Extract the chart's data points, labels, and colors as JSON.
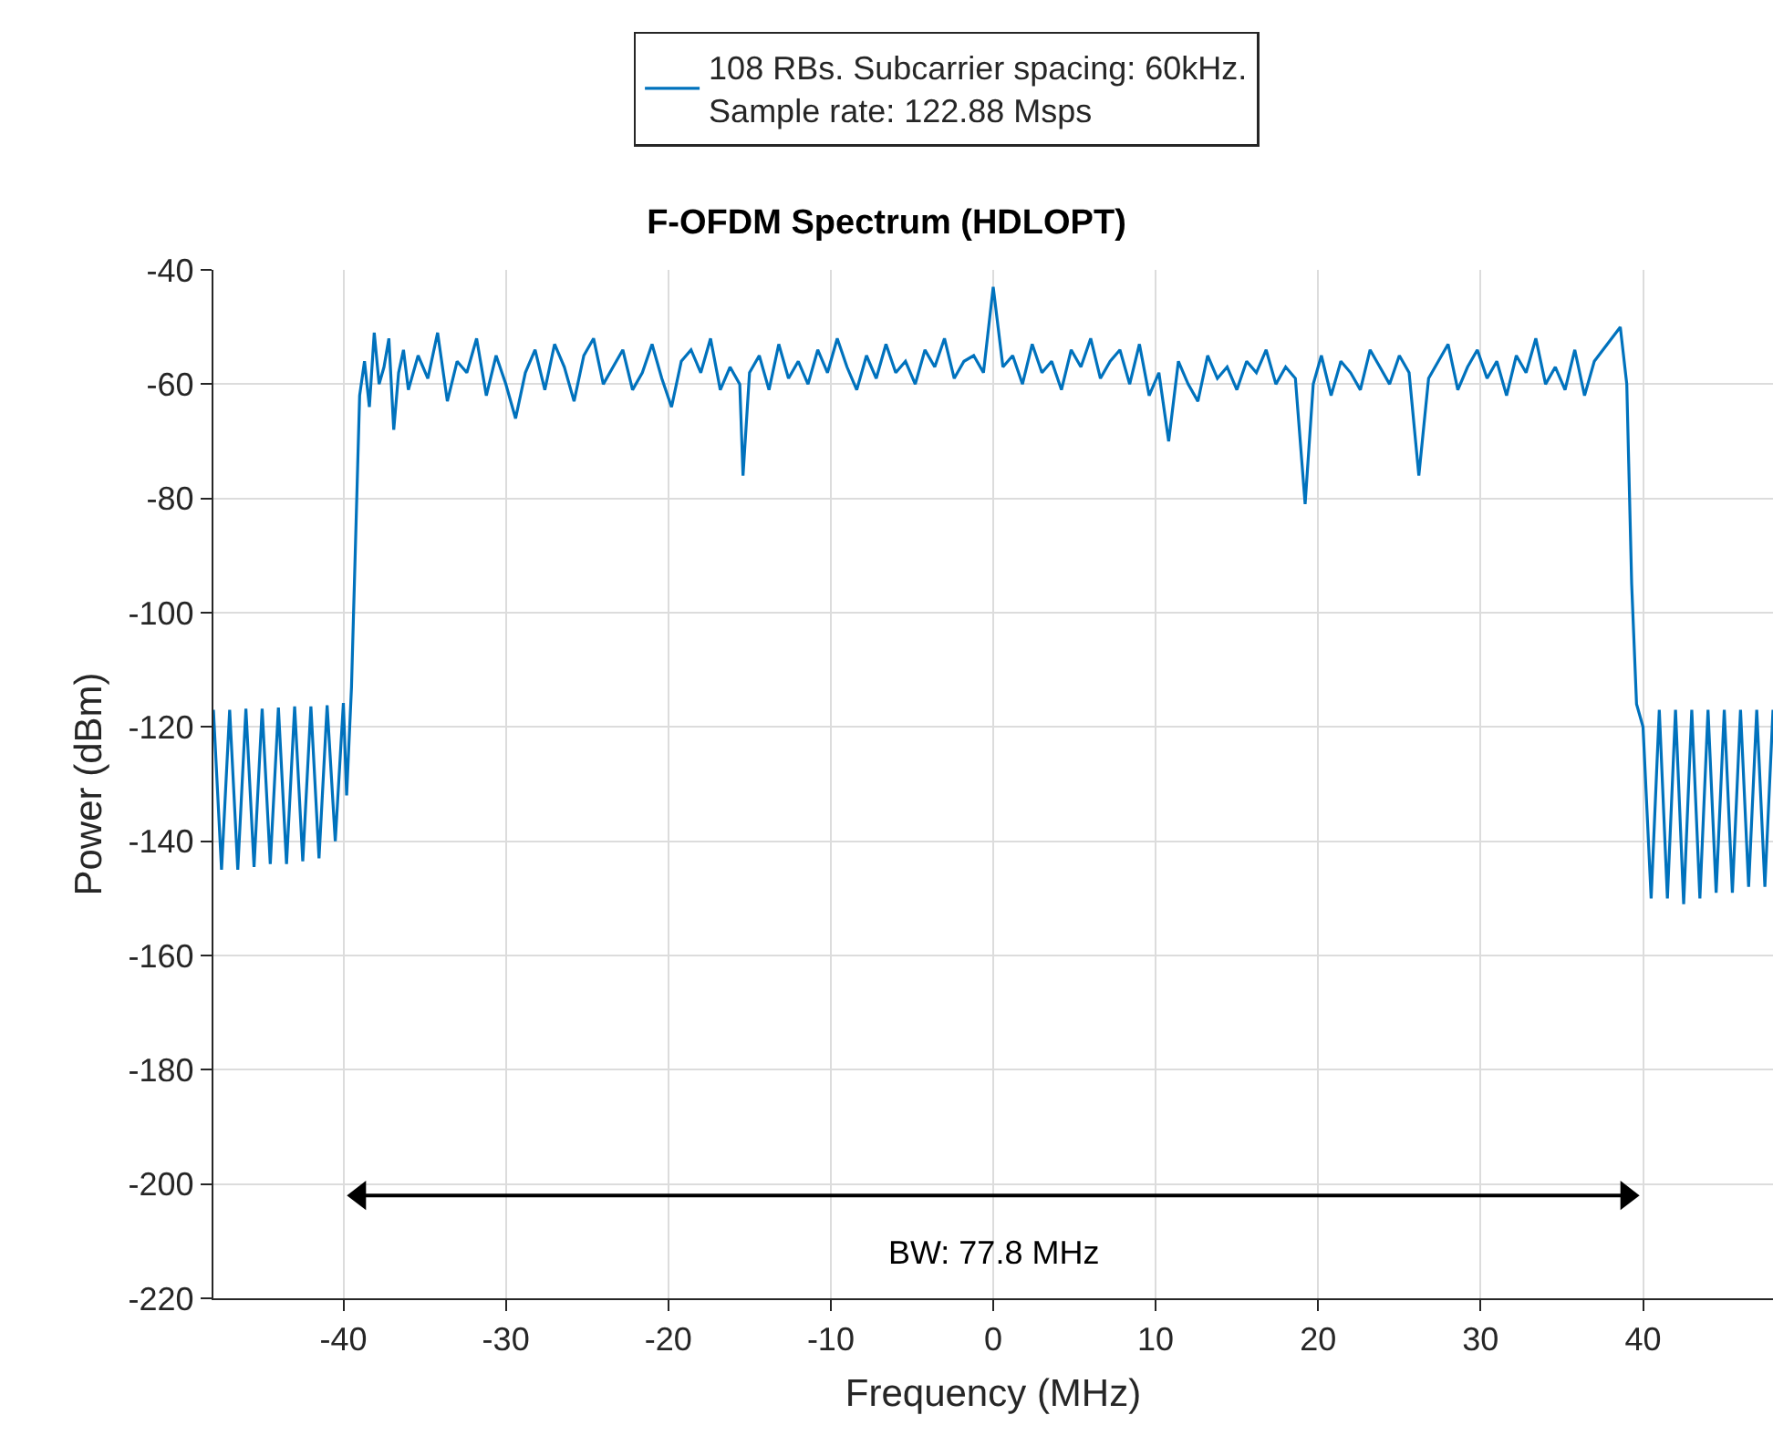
{
  "chart_data": {
    "type": "line",
    "title": "F-OFDM Spectrum (HDLOPT)",
    "xlabel": "Frequency (MHz)",
    "ylabel": "Power (dBm)",
    "xlim": [
      -48,
      48
    ],
    "xticks": [
      -40,
      -30,
      -20,
      -10,
      0,
      10,
      20,
      30,
      40
    ],
    "ylim": [
      -220,
      -40
    ],
    "yticks": [
      -220,
      -200,
      -180,
      -160,
      -140,
      -120,
      -100,
      -80,
      -60,
      -40
    ],
    "grid": true,
    "legend": "top",
    "line_style": "solid",
    "annotations": [
      "BW: 77.8 MHz"
    ],
    "series": [
      {
        "name": "108 RBs. Subcarrier spacing: 60kHz.\nSample rate: 122.88 Msps",
        "color": "#0072bd",
        "x": [
          -48,
          -47.5,
          -47,
          -46.5,
          -46,
          -45.5,
          -45,
          -44.5,
          -44,
          -43.5,
          -43,
          -42.5,
          -42,
          -41.5,
          -41,
          -40.5,
          -40,
          -39.8,
          -39.5,
          -39,
          -38.7,
          -38.4,
          -38.1,
          -37.8,
          -37.5,
          -37.2,
          -36.9,
          -36.6,
          -36.3,
          -36,
          -35.4,
          -34.8,
          -34.2,
          -33.6,
          -33,
          -32.4,
          -31.8,
          -31.2,
          -30.6,
          -30,
          -29.4,
          -28.8,
          -28.2,
          -27.6,
          -27,
          -26.4,
          -25.8,
          -25.2,
          -24.6,
          -24,
          -23.4,
          -22.8,
          -22.2,
          -21.6,
          -21,
          -20.4,
          -19.8,
          -19.2,
          -18.6,
          -18,
          -17.4,
          -16.8,
          -16.2,
          -15.6,
          -15.4,
          -15,
          -14.4,
          -13.8,
          -13.2,
          -12.6,
          -12,
          -11.4,
          -10.8,
          -10.2,
          -9.6,
          -9,
          -8.4,
          -7.8,
          -7.2,
          -6.6,
          -6,
          -5.4,
          -4.8,
          -4.2,
          -3.6,
          -3,
          -2.4,
          -1.8,
          -1.2,
          -0.6,
          0,
          0.6,
          1.2,
          1.8,
          2.4,
          3,
          3.6,
          4.2,
          4.8,
          5.4,
          6,
          6.6,
          7.2,
          7.8,
          8.4,
          9,
          9.6,
          10.2,
          10.8,
          11.4,
          12,
          12.6,
          13.2,
          13.8,
          14.4,
          15,
          15.6,
          16.2,
          16.8,
          17.4,
          18,
          18.6,
          19.2,
          19.7,
          20.2,
          20.8,
          21.4,
          22,
          22.6,
          23.2,
          23.8,
          24.4,
          25,
          25.6,
          26.2,
          26.8,
          27.4,
          28,
          28.6,
          29.2,
          29.8,
          30.4,
          31,
          31.6,
          32.2,
          32.8,
          33.4,
          34,
          34.6,
          35.2,
          35.8,
          36.4,
          37,
          38.6,
          39,
          39.3,
          39.6,
          40,
          40.5,
          41,
          41.5,
          42,
          42.5,
          43,
          43.5,
          44,
          44.5,
          45,
          45.5,
          46,
          46.5,
          47,
          47.5,
          48
        ],
        "values": [
          -117,
          -145,
          -117,
          -145,
          -116.8,
          -144.5,
          -116.8,
          -144,
          -116.6,
          -144,
          -116.4,
          -143.5,
          -116.4,
          -143,
          -116.2,
          -140,
          -115.8,
          -132,
          -113,
          -62,
          -56,
          -64,
          -51,
          -60,
          -57,
          -52,
          -68,
          -58,
          -54,
          -61,
          -55,
          -59,
          -51,
          -63,
          -56,
          -58,
          -52,
          -62,
          -55,
          -60,
          -66,
          -58,
          -54,
          -61,
          -53,
          -57,
          -63,
          -55,
          -52,
          -60,
          -57,
          -54,
          -61,
          -58,
          -53,
          -59,
          -64,
          -56,
          -54,
          -58,
          -52,
          -61,
          -57,
          -60,
          -76,
          -58,
          -55,
          -61,
          -53,
          -59,
          -56,
          -60,
          -54,
          -58,
          -52,
          -57,
          -61,
          -55,
          -59,
          -53,
          -58,
          -56,
          -60,
          -54,
          -57,
          -52,
          -59,
          -56,
          -55,
          -58,
          -43,
          -57,
          -55,
          -60,
          -53,
          -58,
          -56,
          -61,
          -54,
          -57,
          -52,
          -59,
          -56,
          -54,
          -60,
          -53,
          -62,
          -58,
          -70,
          -56,
          -60,
          -63,
          -55,
          -59,
          -57,
          -61,
          -56,
          -58,
          -54,
          -60,
          -57,
          -59,
          -81,
          -60,
          -55,
          -62,
          -56,
          -58,
          -61,
          -54,
          -57,
          -60,
          -55,
          -58,
          -76,
          -59,
          -56,
          -53,
          -61,
          -57,
          -54,
          -59,
          -56,
          -62,
          -55,
          -58,
          -52,
          -60,
          -57,
          -61,
          -54,
          -62,
          -56,
          -50,
          -60,
          -95,
          -116,
          -120,
          -150,
          -117,
          -150,
          -117,
          -151,
          -117,
          -150,
          -117,
          -149,
          -117,
          -149,
          -117,
          -148,
          -117,
          -148,
          -117
        ]
      },
      {
        "color": "#000000",
        "type": "line",
        "marker": "triangle",
        "x": [
          -39,
          39
        ],
        "values": [
          -202,
          -202
        ]
      }
    ]
  }
}
